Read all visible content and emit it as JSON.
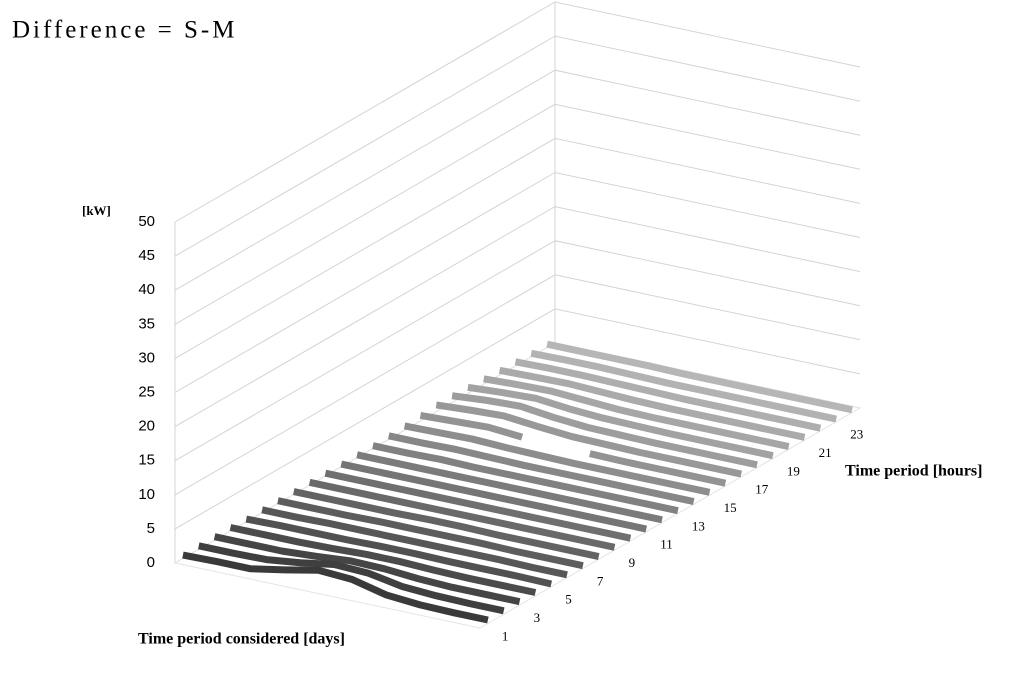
{
  "chart_data": {
    "type": "surface3d",
    "title": "Difference = S-M",
    "y_label": "[kW]",
    "x_label": "Time period [hours]",
    "z_label": "Time period considered [days]",
    "ylim": [
      0,
      50
    ],
    "yticks": [
      0,
      5,
      10,
      15,
      20,
      25,
      30,
      35,
      40,
      45,
      50
    ],
    "grid": true,
    "hours": [
      1,
      null,
      3,
      null,
      5,
      null,
      7,
      null,
      9,
      null,
      11,
      null,
      13,
      null,
      15,
      null,
      17,
      null,
      19,
      null,
      21,
      null,
      23,
      null
    ],
    "series": [
      {
        "color": "#3a3a3a",
        "values": [
          0.5,
          0.6,
          0.6,
          1.5,
          2.5,
          2.2,
          1.0,
          0.6,
          0.5,
          0.5
        ]
      },
      {
        "color": "#3f3f3f",
        "values": [
          0.5,
          0.5,
          0.6,
          1.2,
          2.0,
          1.8,
          0.9,
          0.6,
          0.5,
          0.5
        ]
      },
      {
        "color": "#454545",
        "values": [
          0.5,
          0.5,
          0.5,
          0.8,
          1.2,
          1.1,
          0.7,
          0.5,
          0.5,
          0.5
        ]
      },
      {
        "color": "#4b4b4b",
        "values": [
          0.5,
          0.5,
          0.5,
          0.6,
          0.8,
          0.8,
          0.6,
          0.5,
          0.5,
          0.5
        ]
      },
      {
        "color": "#515151",
        "values": [
          0.4,
          0.5,
          0.5,
          0.5,
          0.6,
          0.6,
          0.5,
          0.5,
          0.5,
          0.4
        ]
      },
      {
        "color": "#575757",
        "values": [
          0.4,
          0.4,
          0.5,
          0.5,
          0.5,
          0.5,
          0.5,
          0.5,
          0.4,
          0.4
        ]
      },
      {
        "color": "#5d5d5d",
        "values": [
          0.4,
          0.4,
          0.4,
          0.5,
          0.5,
          0.5,
          0.5,
          0.4,
          0.4,
          0.4
        ]
      },
      {
        "color": "#636363",
        "values": [
          0.4,
          0.4,
          0.4,
          0.4,
          0.5,
          0.5,
          0.4,
          0.4,
          0.4,
          0.4
        ]
      },
      {
        "color": "#696969",
        "values": [
          0.4,
          0.4,
          0.4,
          0.4,
          0.4,
          0.4,
          0.4,
          0.4,
          0.4,
          0.4
        ]
      },
      {
        "color": "#6f6f6f",
        "values": [
          0.4,
          0.4,
          0.4,
          0.4,
          0.4,
          0.4,
          0.4,
          0.4,
          0.4,
          0.4
        ]
      },
      {
        "color": "#757575",
        "values": [
          0.4,
          0.4,
          0.4,
          0.4,
          0.4,
          0.4,
          0.4,
          0.4,
          0.4,
          0.4
        ]
      },
      {
        "color": "#7b7b7b",
        "values": [
          0.4,
          0.4,
          0.4,
          0.4,
          0.4,
          0.4,
          0.4,
          0.4,
          0.4,
          0.4
        ]
      },
      {
        "color": "#818181",
        "values": [
          0.4,
          0.4,
          0.5,
          0.4,
          0.4,
          0.4,
          0.4,
          0.4,
          0.4,
          0.4
        ]
      },
      {
        "color": "#878787",
        "values": [
          0.5,
          0.5,
          0.6,
          0.5,
          0.4,
          0.4,
          0.4,
          0.4,
          0.4,
          0.4
        ]
      },
      {
        "color": "#8d8d8d",
        "values": [
          0.6,
          0.7,
          0.8,
          0.6,
          0.5,
          0.4,
          0.4,
          0.4,
          0.4,
          0.4
        ]
      },
      {
        "color": "#939393",
        "values": [
          0.8,
          1.0,
          1.2,
          0.8,
          null,
          0.5,
          0.4,
          0.4,
          0.4,
          0.4
        ]
      },
      {
        "color": "#989898",
        "values": [
          1.0,
          1.3,
          1.5,
          1.0,
          0.6,
          0.5,
          0.4,
          0.4,
          0.4,
          0.4
        ]
      },
      {
        "color": "#9d9d9d",
        "values": [
          1.0,
          1.4,
          1.6,
          1.0,
          0.6,
          0.5,
          0.4,
          0.4,
          0.4,
          0.4
        ]
      },
      {
        "color": "#a2a2a2",
        "values": [
          0.9,
          1.2,
          1.4,
          0.9,
          0.6,
          0.5,
          0.4,
          0.4,
          0.4,
          0.4
        ]
      },
      {
        "color": "#a6a6a6",
        "values": [
          0.8,
          1.0,
          1.1,
          0.8,
          0.5,
          0.4,
          0.4,
          0.4,
          0.4,
          0.4
        ]
      },
      {
        "color": "#aaaaaa",
        "values": [
          0.7,
          0.8,
          0.9,
          0.7,
          0.5,
          0.4,
          0.4,
          0.4,
          0.4,
          0.4
        ]
      },
      {
        "color": "#aeaeae",
        "values": [
          0.6,
          0.7,
          0.7,
          0.6,
          0.5,
          0.4,
          0.4,
          0.4,
          0.4,
          0.4
        ]
      },
      {
        "color": "#b2b2b2",
        "values": [
          0.5,
          0.6,
          0.6,
          0.5,
          0.4,
          0.4,
          0.4,
          0.4,
          0.4,
          0.4
        ]
      },
      {
        "color": "#b6b6b6",
        "values": [
          0.5,
          0.5,
          0.5,
          0.5,
          0.4,
          0.4,
          0.4,
          0.4,
          0.4,
          0.4
        ]
      }
    ]
  }
}
